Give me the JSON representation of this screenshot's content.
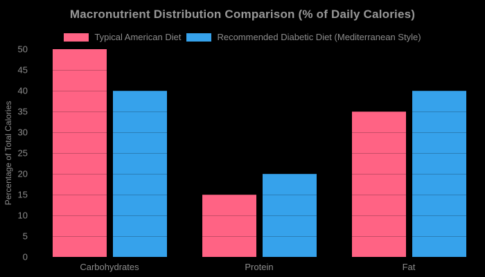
{
  "chart_data": {
    "type": "bar",
    "title": "Macronutrient Distribution Comparison (% of Daily Calories)",
    "ylabel": "Percentage of Total Calories",
    "xlabel": "",
    "categories": [
      "Carbohydrates",
      "Protein",
      "Fat"
    ],
    "series": [
      {
        "name": "Typical American Diet",
        "color": "#FF6384",
        "values": [
          50,
          15,
          35
        ]
      },
      {
        "name": "Recommended Diabetic Diet (Mediterranean Style)",
        "color": "#36A2EB",
        "values": [
          40,
          20,
          40
        ]
      }
    ],
    "ylim": [
      0,
      50
    ],
    "yticks": [
      0,
      5,
      10,
      15,
      20,
      25,
      30,
      35,
      40,
      45,
      50
    ],
    "legend_position": "top-center",
    "grid": "horizontal lines every 5, drawn over bars",
    "background_color": "#000000",
    "title_color": "#989898",
    "text_color": "#8d8d8d",
    "gridline_overlay_color": "rgba(0,0,0,0.22)"
  }
}
